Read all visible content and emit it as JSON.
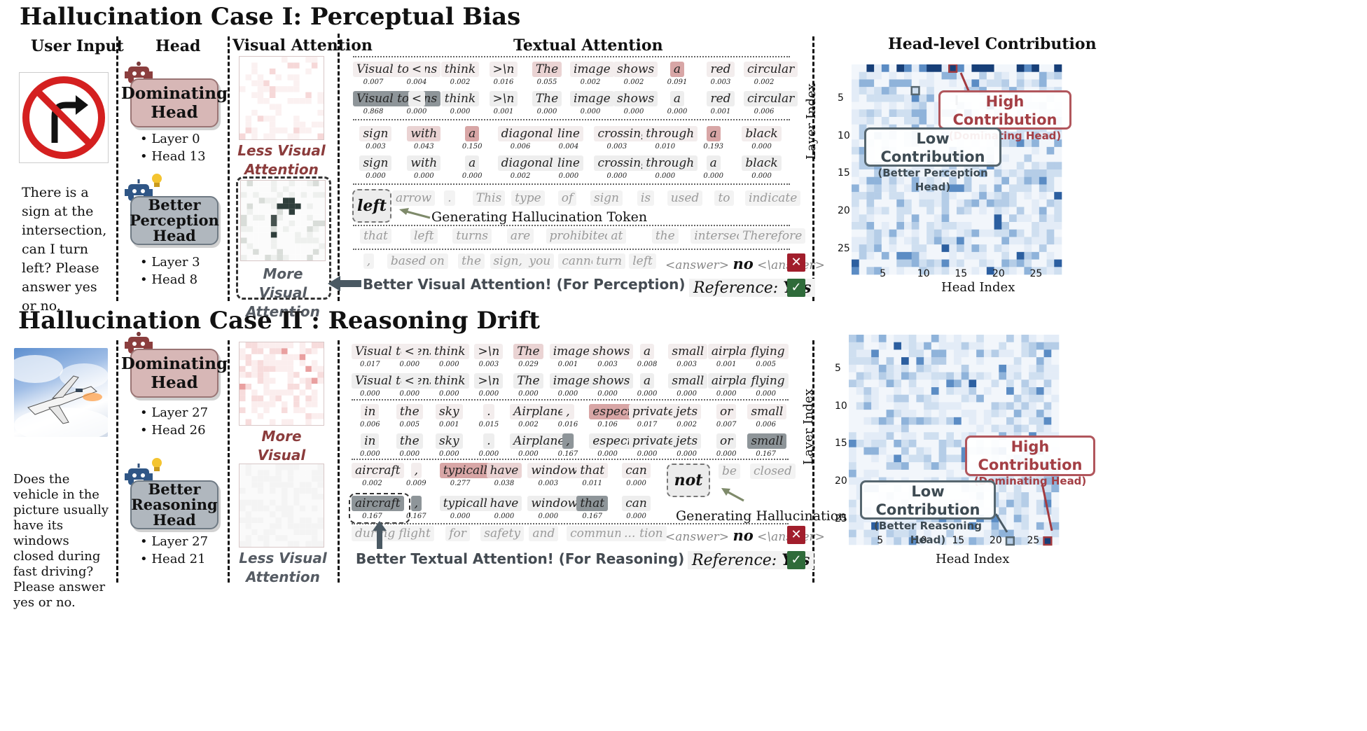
{
  "case1": {
    "title": "Hallucination Case I: Perceptual Bias",
    "col_user_input": "User Input",
    "col_head": "Head",
    "col_visual": "Visual Attention",
    "col_textual": "Textual Attention",
    "col_contribution": "Head-level Contribution",
    "question": "There is a sign at the intersection, can I turn left? Please answer yes or no.",
    "dom_head": {
      "label": "Dominating Head",
      "layer": "Layer 0",
      "head": "Head 13"
    },
    "bet_head": {
      "label": "Better Perception Head",
      "layer": "Layer 3",
      "head": "Head 8"
    },
    "visual_caption_top": "Less Visual Attention",
    "visual_caption_bottom": "More Visual Attention",
    "better_label": "Better Visual Attention! (For Perception)",
    "gen_label": "Generating Hallucination Token",
    "hallu_token": "left",
    "row1_tokens": [
      "Visual tokens",
      "<",
      "think",
      ">\\n",
      "The",
      "image",
      "shows",
      "a",
      "red",
      "circular"
    ],
    "row1_top_vals": [
      "0.007",
      "0.004",
      "0.002",
      "0.016",
      "0.055",
      "0.002",
      "0.002",
      "0.091",
      "0.003",
      "0.002"
    ],
    "row1_bot_vals": [
      "0.868",
      "0.000",
      "0.000",
      "0.001",
      "0.000",
      "0.000",
      "0.000",
      "0.000",
      "0.001",
      "0.006"
    ],
    "row2_tokens": [
      "sign",
      "with",
      "a",
      "diagonal",
      "line",
      "crossing",
      "through",
      "a",
      "black"
    ],
    "row2_top_vals": [
      "0.003",
      "0.043",
      "0.150",
      "0.006",
      "0.004",
      "0.003",
      "0.010",
      "0.193",
      "0.000"
    ],
    "row2_bot_vals": [
      "0.000",
      "0.000",
      "0.000",
      "0.002",
      "0.000",
      "0.000",
      "0.000",
      "0.000",
      "0.000"
    ],
    "row3_tokens": [
      "arrow",
      ".",
      "This",
      "type",
      "of",
      "sign",
      "is",
      "used",
      "to",
      "indicate"
    ],
    "row4_tokens": [
      "that",
      "left",
      "turns",
      "are",
      "prohibited",
      "at",
      "the",
      "intersection.",
      "Therefore"
    ],
    "row5_tokens": [
      ",",
      "based",
      "on",
      "the",
      "sign,",
      "you",
      "cannot",
      "turn",
      "left"
    ],
    "answer_open": "<answer>",
    "answer_word": "no",
    "answer_close": "<\\answer>",
    "reference_label": "Reference:",
    "reference_value": "Yes",
    "contrib": {
      "high_title": "High Contribution",
      "high_sub": "(Dominating Head)",
      "low_title": "Low Contribution",
      "low_sub": "(Better Perception Head)",
      "ylabel": "Layer Index",
      "xlabel": "Head Index",
      "yticks": [
        "5",
        "10",
        "15",
        "20",
        "25"
      ],
      "xticks": [
        "5",
        "10",
        "15",
        "20",
        "25"
      ]
    }
  },
  "case2": {
    "title": "Hallucination Case II : Reasoning Drift",
    "question": "Does the vehicle in the picture usually have its windows closed during fast driving? Please answer yes or no.",
    "dom_head": {
      "label": "Dominating Head",
      "layer": "Layer 27",
      "head": "Head 26"
    },
    "bet_head": {
      "label": "Better Reasoning Head",
      "layer": "Layer 27",
      "head": "Head 21"
    },
    "visual_caption_top": "More Visual Attention",
    "visual_caption_bottom": "Less Visual Attention",
    "better_label": "Better Textual Attention! (For Reasoning)",
    "gen_label": "Generating Hallucination Token",
    "hallu_token": "not",
    "row1_tokens": [
      "Visual tokens",
      "<",
      "think",
      ">\\n",
      "The",
      "image",
      "shows",
      "a",
      "small",
      "airplane",
      "flying"
    ],
    "row1_top_vals": [
      "0.017",
      "0.000",
      "0.000",
      "0.003",
      "0.029",
      "0.001",
      "0.003",
      "0.008",
      "0.003",
      "0.001",
      "0.005"
    ],
    "row1_bot_vals": [
      "0.000",
      "0.000",
      "0.000",
      "0.000",
      "0.000",
      "0.000",
      "0.000",
      "0.000",
      "0.000",
      "0.000",
      "0.000"
    ],
    "row2_tokens": [
      "in",
      "the",
      "sky",
      ".",
      "Airplanes",
      ",",
      "especially",
      "private",
      "jets",
      "or",
      "small"
    ],
    "row2_top_vals": [
      "0.006",
      "0.005",
      "0.001",
      "0.015",
      "0.002",
      "0.016",
      "0.106",
      "0.017",
      "0.002",
      "0.007",
      "0.006"
    ],
    "row2_bot_vals": [
      "0.000",
      "0.000",
      "0.000",
      "0.000",
      "0.000",
      "0.167",
      "0.000",
      "0.000",
      "0.000",
      "0.000",
      "0.167"
    ],
    "row3_tokens": [
      "aircraft",
      ",",
      "typically",
      "have",
      "windows",
      "that",
      "can"
    ],
    "row3_top_vals": [
      "0.002",
      "0.009",
      "0.277",
      "0.038",
      "0.003",
      "0.011",
      "0.000"
    ],
    "row3_bot_vals": [
      "0.167",
      "0.167",
      "0.000",
      "0.000",
      "0.000",
      "0.167",
      "0.000"
    ],
    "row3_tail": [
      "be",
      "closed"
    ],
    "row4_tokens": [
      "during",
      "flight",
      "for",
      "safety",
      "and",
      "communication",
      "..."
    ],
    "answer_open": "<answer>",
    "answer_word": "no",
    "answer_close": "<\\answer>",
    "reference_label": "Reference:",
    "reference_value": "Yes",
    "contrib": {
      "high_title": "High Contribution",
      "high_sub": "(Dominating Head)",
      "low_title": "Low Contribution",
      "low_sub": "(Better Reasoning Head)",
      "ylabel": "Layer Index",
      "xlabel": "Head Index",
      "yticks": [
        "5",
        "10",
        "15",
        "20",
        "25"
      ],
      "xticks": [
        "5",
        "10",
        "15",
        "20",
        "25"
      ]
    }
  },
  "colors": {
    "dominating": "#d7b7b6",
    "better": "#b0b7be",
    "heat_dark": "#1f4f8f",
    "heat_light": "#eef3fa",
    "wrong": "#a11e2c",
    "right": "#2f6b3a"
  }
}
